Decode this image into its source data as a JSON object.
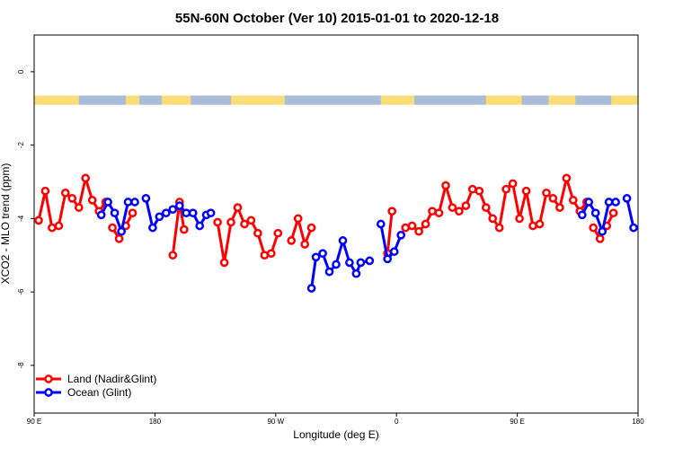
{
  "chart_data": {
    "type": "line",
    "title": "55N-60N October (Ver 10)   2015-01-01 to 2020-12-18",
    "xlabel": "Longitude (deg E)",
    "ylabel": "XCO2 - MLO trend (ppm)",
    "xlim": [
      -90,
      180
    ],
    "ylim": [
      -9.3,
      1.0
    ],
    "x_ticks": [
      {
        "value": -90,
        "label": "90 E"
      },
      {
        "value": -36,
        "label": "180"
      },
      {
        "value": 18,
        "label": "90 W"
      },
      {
        "value": 72,
        "label": "0"
      },
      {
        "value": 126,
        "label": "90 E"
      },
      {
        "value": 180,
        "label": "180"
      }
    ],
    "y_ticks": [
      0,
      -2,
      -4,
      -6,
      -8
    ],
    "land_band": {
      "y_top": -0.65,
      "y_bottom": -0.9,
      "land_color": "#fadc78",
      "ocean_color": "#a9bcd9"
    },
    "legend": {
      "position": "bottom-left"
    },
    "series": [
      {
        "name": "Land (Nadir&Glint)",
        "color": "#ff0000",
        "segments": [
          [
            [
              -88,
              -4.05
            ],
            [
              -85,
              -3.25
            ],
            [
              -82,
              -4.25
            ],
            [
              -79,
              -4.2
            ],
            [
              -76,
              -3.3
            ],
            [
              -73,
              -3.45
            ],
            [
              -70,
              -3.7
            ],
            [
              -67,
              -2.9
            ],
            [
              -64,
              -3.5
            ],
            [
              -61,
              -3.8
            ],
            [
              -58,
              -3.55
            ]
          ],
          [
            [
              -55,
              -4.25
            ],
            [
              -52,
              -4.55
            ],
            [
              -49,
              -4.2
            ],
            [
              -46,
              -3.85
            ]
          ],
          [
            [
              -28,
              -5.0
            ],
            [
              -25,
              -3.55
            ],
            [
              -23,
              -4.3
            ]
          ],
          [
            [
              -8,
              -4.1
            ],
            [
              -5,
              -5.2
            ],
            [
              -2,
              -4.1
            ],
            [
              1,
              -3.7
            ],
            [
              4,
              -4.15
            ],
            [
              7,
              -4.05
            ],
            [
              10,
              -4.4
            ],
            [
              13,
              -5.0
            ],
            [
              16,
              -4.95
            ],
            [
              19,
              -4.4
            ]
          ],
          [
            [
              25,
              -4.6
            ],
            [
              28,
              -4.0
            ],
            [
              31,
              -4.7
            ],
            [
              34,
              -4.25
            ]
          ],
          [
            [
              68,
              -4.95
            ],
            [
              70,
              -3.8
            ]
          ],
          [
            [
              76,
              -4.25
            ],
            [
              79,
              -4.2
            ],
            [
              82,
              -4.35
            ],
            [
              85,
              -4.15
            ],
            [
              88,
              -3.8
            ],
            [
              91,
              -3.85
            ],
            [
              94,
              -3.1
            ],
            [
              97,
              -3.7
            ],
            [
              100,
              -3.8
            ],
            [
              103,
              -3.65
            ],
            [
              106,
              -3.2
            ],
            [
              109,
              -3.25
            ],
            [
              112,
              -3.7
            ],
            [
              115,
              -4.0
            ],
            [
              118,
              -4.25
            ],
            [
              121,
              -3.2
            ],
            [
              124,
              -3.05
            ],
            [
              127,
              -4.0
            ],
            [
              130,
              -3.25
            ],
            [
              133,
              -4.2
            ],
            [
              136,
              -4.15
            ],
            [
              139,
              -3.3
            ],
            [
              142,
              -3.45
            ],
            [
              145,
              -3.7
            ],
            [
              148,
              -2.9
            ],
            [
              151,
              -3.5
            ],
            [
              154,
              -3.8
            ],
            [
              157,
              -3.55
            ]
          ],
          [
            [
              160,
              -4.25
            ],
            [
              163,
              -4.55
            ],
            [
              166,
              -4.2
            ],
            [
              169,
              -3.85
            ]
          ]
        ]
      },
      {
        "name": "Ocean (Glint)",
        "color": "#0000ff",
        "segments": [
          [
            [
              -60,
              -3.9
            ],
            [
              -57,
              -3.55
            ],
            [
              -54,
              -3.85
            ],
            [
              -51,
              -4.35
            ],
            [
              -48,
              -3.55
            ],
            [
              -45,
              -3.55
            ]
          ],
          [
            [
              -40,
              -3.45
            ],
            [
              -37,
              -4.25
            ],
            [
              -34,
              -3.95
            ],
            [
              -31,
              -3.85
            ],
            [
              -28,
              -3.75
            ],
            [
              -25,
              -3.65
            ],
            [
              -22,
              -3.85
            ],
            [
              -19,
              -3.85
            ],
            [
              -16,
              -4.2
            ],
            [
              -13,
              -3.9
            ],
            [
              -11,
              -3.85
            ]
          ],
          [
            [
              34,
              -5.9
            ],
            [
              36,
              -5.05
            ],
            [
              39,
              -4.95
            ],
            [
              42,
              -5.45
            ],
            [
              45,
              -5.25
            ],
            [
              48,
              -4.6
            ],
            [
              51,
              -5.2
            ],
            [
              54,
              -5.5
            ],
            [
              56,
              -5.2
            ],
            [
              60,
              -5.15
            ]
          ],
          [
            [
              65,
              -4.15
            ],
            [
              68,
              -5.1
            ],
            [
              71,
              -4.9
            ],
            [
              74,
              -4.45
            ]
          ],
          [
            [
              155,
              -3.9
            ],
            [
              158,
              -3.55
            ],
            [
              161,
              -3.85
            ],
            [
              164,
              -4.35
            ],
            [
              167,
              -3.55
            ],
            [
              170,
              -3.55
            ]
          ],
          [
            [
              175,
              -3.45
            ],
            [
              178,
              -4.25
            ]
          ]
        ]
      }
    ]
  }
}
